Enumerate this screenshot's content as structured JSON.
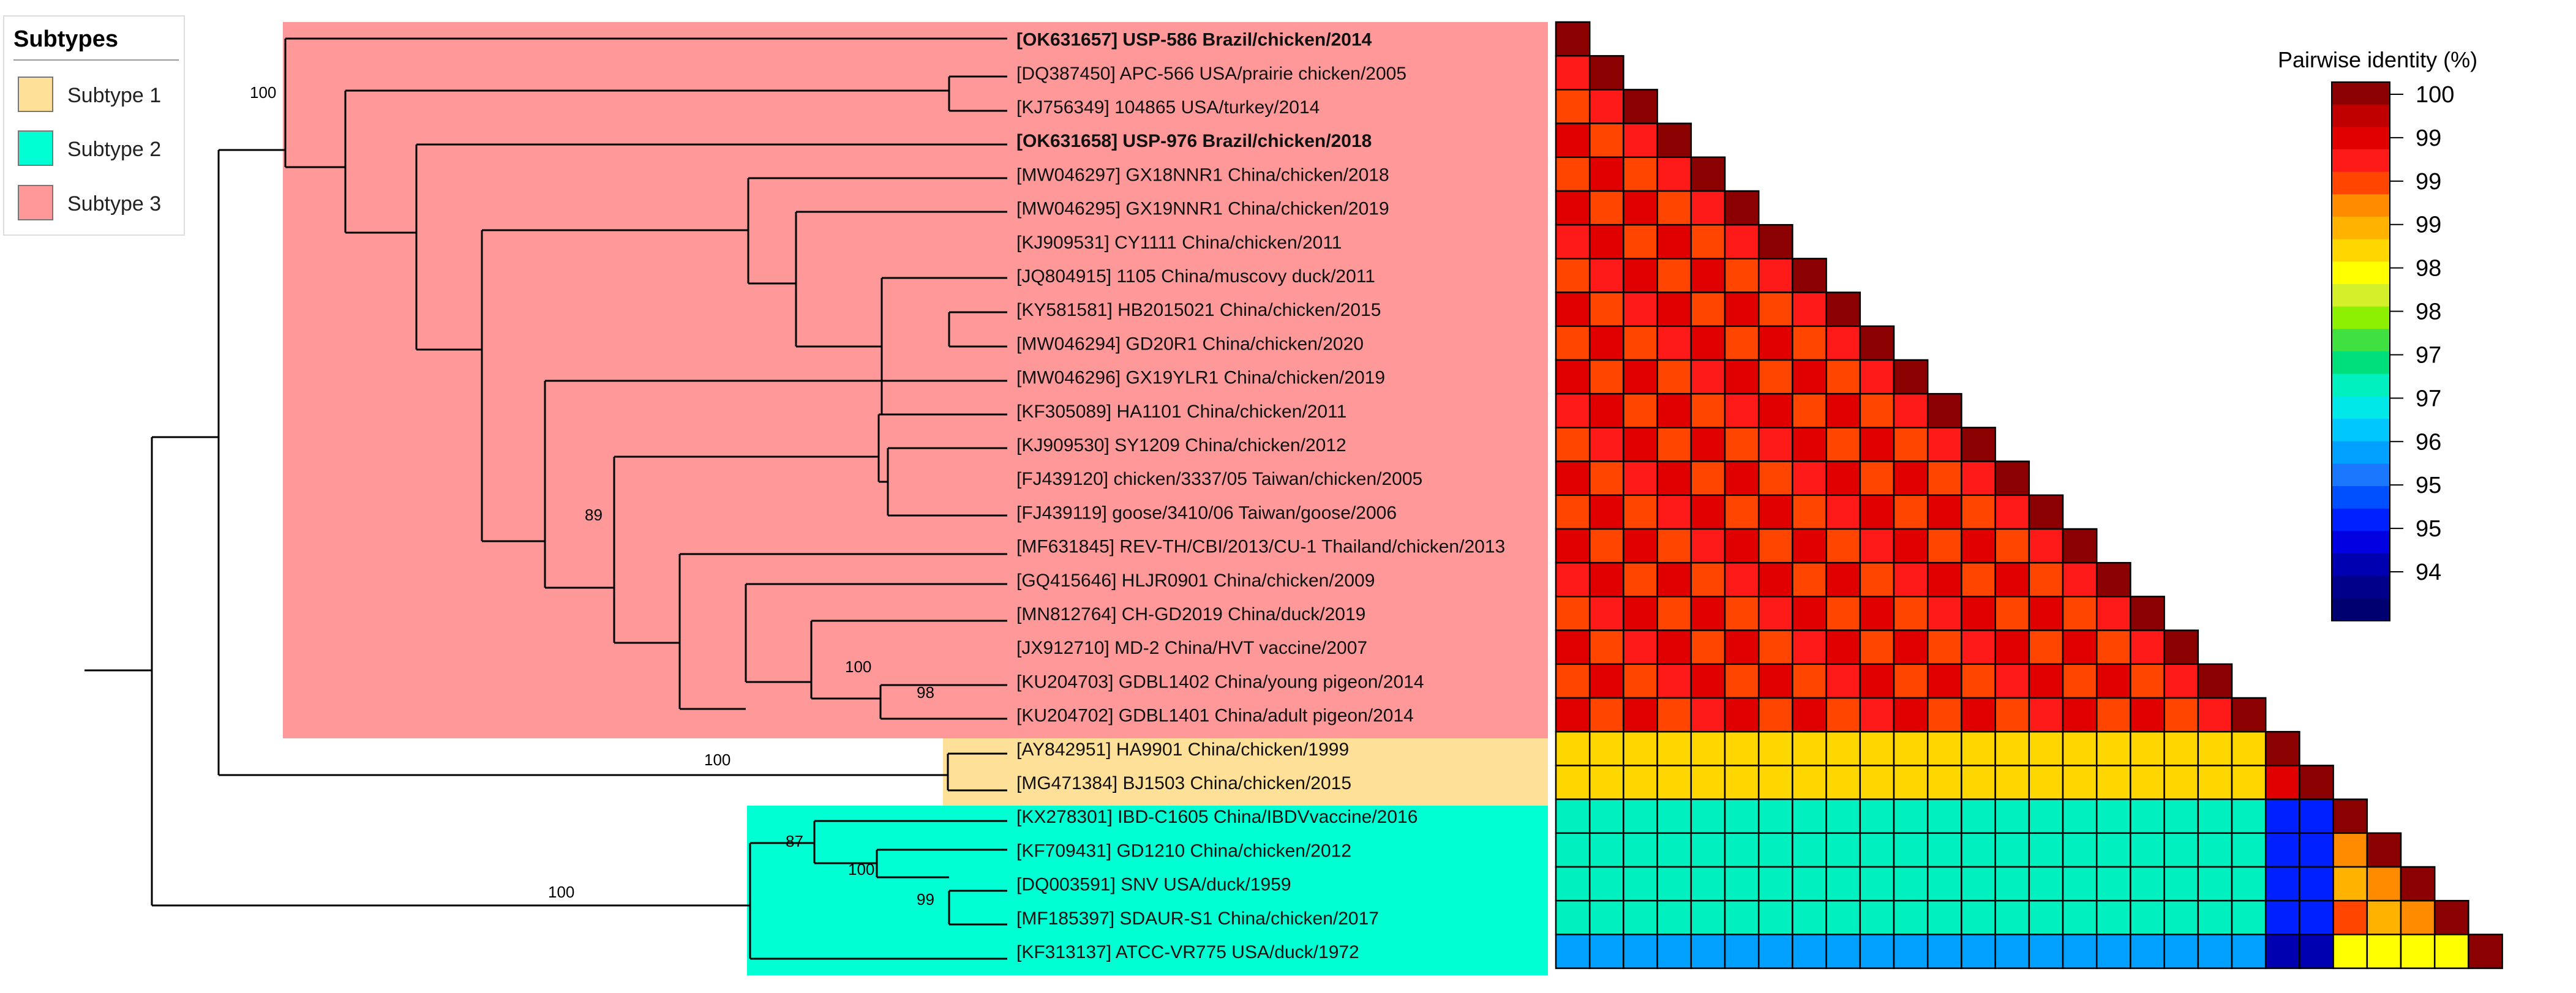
{
  "legend": {
    "title": "Subtypes",
    "items": [
      {
        "label": "Subtype 1",
        "color": "#FFE099"
      },
      {
        "label": "Subtype 2",
        "color": "#00FFD2"
      },
      {
        "label": "Subtype 3",
        "color": "#FF9999"
      }
    ]
  },
  "colorbar": {
    "title": "Pairwise identity (%)",
    "ticks": [
      "100",
      "99",
      "99",
      "99",
      "98",
      "98",
      "97",
      "97",
      "96",
      "95",
      "95",
      "94"
    ],
    "colors": [
      "#8B0000",
      "#C00000",
      "#E00000",
      "#FF1A1A",
      "#FF4500",
      "#FF8C00",
      "#FFB300",
      "#FFD700",
      "#FFFF00",
      "#D4F02A",
      "#8CF000",
      "#40E040",
      "#00E07A",
      "#00F0C0",
      "#00E8E8",
      "#00C8FF",
      "#00A0FF",
      "#1A78FF",
      "#0050FF",
      "#0020FF",
      "#0000E0",
      "#0000B0",
      "#00008B",
      "#000070"
    ]
  },
  "tree": {
    "taxa": [
      {
        "label": "[OK631657] USP-586 Brazil/chicken/2014",
        "bold": true
      },
      {
        "label": "[DQ387450] APC-566 USA/prairie chicken/2005"
      },
      {
        "label": "[KJ756349] 104865 USA/turkey/2014"
      },
      {
        "label": "[OK631658] USP-976 Brazil/chicken/2018",
        "bold": true
      },
      {
        "label": "[MW046297] GX18NNR1 China/chicken/2018"
      },
      {
        "label": "[MW046295] GX19NNR1 China/chicken/2019"
      },
      {
        "label": "[KJ909531] CY1111 China/chicken/2011"
      },
      {
        "label": "[JQ804915] 1105 China/muscovy duck/2011"
      },
      {
        "label": "[KY581581] HB2015021 China/chicken/2015"
      },
      {
        "label": "[MW046294] GD20R1 China/chicken/2020"
      },
      {
        "label": "[MW046296] GX19YLR1 China/chicken/2019"
      },
      {
        "label": "[KF305089] HA1101 China/chicken/2011"
      },
      {
        "label": "[KJ909530] SY1209 China/chicken/2012"
      },
      {
        "label": "[FJ439120] chicken/3337/05 Taiwan/chicken/2005"
      },
      {
        "label": "[FJ439119] goose/3410/06 Taiwan/goose/2006"
      },
      {
        "label": "[MF631845] REV-TH/CBI/2013/CU-1 Thailand/chicken/2013"
      },
      {
        "label": "[GQ415646] HLJR0901 China/chicken/2009"
      },
      {
        "label": "[MN812764] CH-GD2019 China/duck/2019"
      },
      {
        "label": "[JX912710] MD-2 China/HVT vaccine/2007"
      },
      {
        "label": "[KU204703] GDBL1402 China/young pigeon/2014"
      },
      {
        "label": "[KU204702] GDBL1401 China/adult pigeon/2014"
      },
      {
        "label": "[AY842951] HA9901 China/chicken/1999"
      },
      {
        "label": "[MG471384] BJ1503 China/chicken/2015"
      },
      {
        "label": "[KX278301] IBD-C1605 China/IBDVvaccine/2016"
      },
      {
        "label": "[KF709431] GD1210 China/chicken/2012"
      },
      {
        "label": "[DQ003591] SNV USA/duck/1959"
      },
      {
        "label": "[MF185397] SDAUR-S1 China/chicken/2017"
      },
      {
        "label": "[KF313137] ATCC-VR775 USA/duck/1972"
      }
    ],
    "bootstrap": [
      "100",
      "89",
      "100",
      "98",
      "100",
      "87",
      "100",
      "99",
      "100"
    ]
  },
  "chart_data": {
    "type": "heatmap",
    "title": "Pairwise identity (%)",
    "value_range": [
      94,
      100
    ],
    "rows": 28,
    "shape": "lower-triangular matrix of pairwise nucleotide identity between the 28 taxa",
    "approx_identity_blocks": [
      {
        "within": "Subtype 3",
        "value": 99.5
      },
      {
        "within": "Subtype 1",
        "value": 99.8
      },
      {
        "within": "Subtype 2",
        "value": 99.0
      },
      {
        "between": [
          "Subtype 1",
          "Subtype 3"
        ],
        "value": 98.2
      },
      {
        "between": [
          "Subtype 2",
          "Subtype 3"
        ],
        "value": 96.5
      },
      {
        "between": [
          "Subtype 2",
          "Subtype 1"
        ],
        "value": 95.0
      },
      {
        "between": [
          "ATCC-VR775",
          "Subtype 3"
        ],
        "value": 95.8
      },
      {
        "between": [
          "ATCC-VR775",
          "Subtype 1"
        ],
        "value": 94.5
      },
      {
        "between": [
          "ATCC-VR775",
          "Subtype 2"
        ],
        "value": 98.0
      }
    ]
  }
}
